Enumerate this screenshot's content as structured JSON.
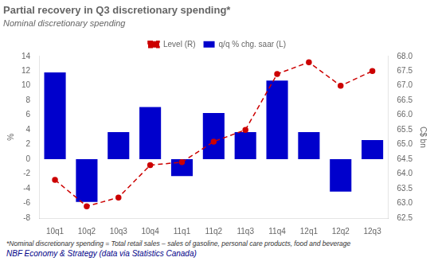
{
  "chart_data": {
    "type": "bar",
    "title": "Partial recovery in Q3 discretionary spending*",
    "subtitle": "Nominal discretionary spending",
    "categories": [
      "10q1",
      "10q2",
      "10q3",
      "10q4",
      "11q1",
      "11q2",
      "11q3",
      "11q4",
      "12q1",
      "12q2",
      "12q3"
    ],
    "series": [
      {
        "name": "q/q % chg. saar (L)",
        "type": "bar",
        "color": "#0000cc",
        "values": [
          11.8,
          -5.8,
          3.7,
          7.1,
          -2.3,
          6.3,
          3.7,
          10.7,
          3.7,
          -4.4,
          2.6
        ]
      },
      {
        "name": "Level (R)",
        "type": "line",
        "axis": "y2",
        "color": "#cc0000",
        "line_style": "dashed",
        "marker": "o",
        "values": [
          63.8,
          62.9,
          63.2,
          64.3,
          64.4,
          65.1,
          65.5,
          67.4,
          67.8,
          67.0,
          67.5
        ]
      }
    ],
    "ylabel": "%",
    "y2label": "C$ bn",
    "ylim": [
      -8,
      14
    ],
    "yticks": [
      -8,
      -6,
      -4,
      -2,
      0,
      2,
      4,
      6,
      8,
      10,
      12,
      14
    ],
    "y2lim": [
      62.5,
      68.0
    ],
    "y2ticks": [
      62.5,
      {
        "value": 63.0,
        "label": "63.0"
      },
      63.5,
      {
        "value": 64.0,
        "label": "64.0"
      },
      64.5,
      {
        "value": 65.0,
        "label": "65.0"
      },
      65.5,
      {
        "value": 66.0,
        "label": "66.0"
      },
      66.5,
      {
        "value": 67.0,
        "label": "67.0"
      },
      67.5,
      {
        "value": 68.0,
        "label": "68.0"
      }
    ],
    "grid": false,
    "legend": "top",
    "footnote": "*Nominal discretionary spending = Total retail sales – sales of gasoline, personal care products, food and beverage",
    "source": "NBF Economy & Strategy (data via Statistics Canada)"
  }
}
